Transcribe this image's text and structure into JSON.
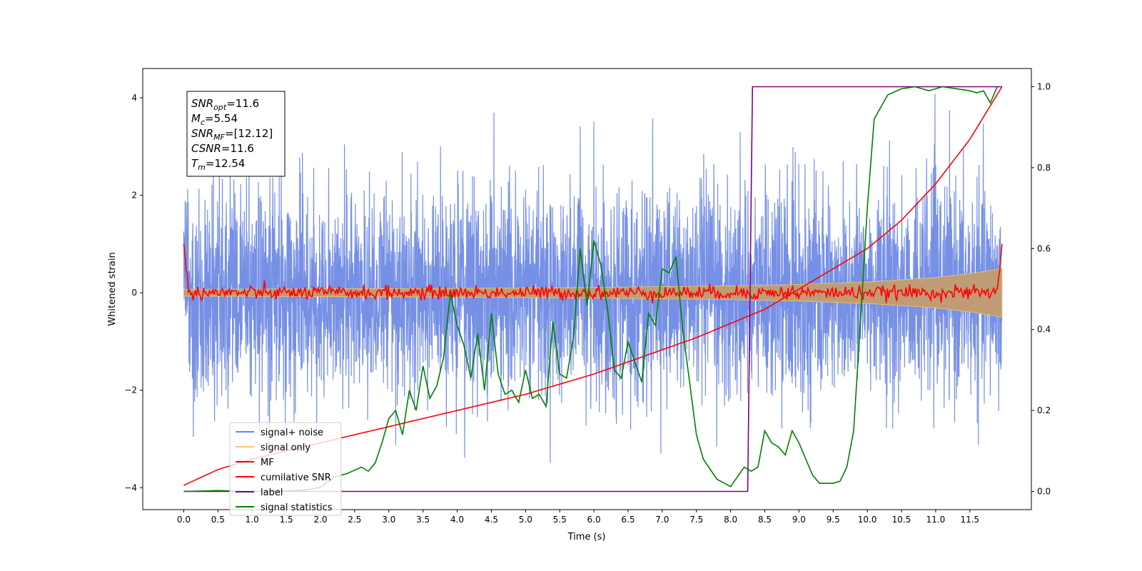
{
  "chart_data": {
    "type": "line",
    "xlabel": "Time (s)",
    "ylabel": "Whitened strain",
    "xlim": [
      -0.6,
      12.4
    ],
    "ylim": [
      -4.45,
      4.6
    ],
    "y2lim": [
      -0.045,
      1.045
    ],
    "xticks": [
      0.0,
      0.5,
      1.0,
      1.5,
      2.0,
      2.5,
      3.0,
      3.5,
      4.0,
      4.5,
      5.0,
      5.5,
      6.0,
      6.5,
      7.0,
      7.5,
      8.0,
      8.5,
      9.0,
      9.5,
      10.0,
      10.5,
      11.0,
      11.5
    ],
    "xtick_labels": [
      "0.0",
      "0.5",
      "1.0",
      "1.5",
      "2.0",
      "2.5",
      "3.0",
      "3.5",
      "4.0",
      "4.5",
      "5.0",
      "5.5",
      "6.0",
      "6.5",
      "7.0",
      "7.5",
      "8.0",
      "8.5",
      "9.0",
      "9.5",
      "10.0",
      "10.5",
      "11.0",
      "11.5"
    ],
    "yticks": [
      -4,
      -2,
      0,
      2,
      4
    ],
    "ytick_labels": [
      "−4",
      "−2",
      "0",
      "2",
      "4"
    ],
    "y2ticks": [
      0.0,
      0.2,
      0.4,
      0.6,
      0.8,
      1.0
    ],
    "y2tick_labels": [
      "0.0",
      "0.2",
      "0.4",
      "0.6",
      "0.8",
      "1.0"
    ],
    "grid": false,
    "legend_placement": "lower-left",
    "annotation_lines": [
      {
        "main": "SNR",
        "sub": "opt",
        "rest": "=11.6"
      },
      {
        "main": "M",
        "sub": "c",
        "rest": "=5.54"
      },
      {
        "main": "SNR",
        "sub": "MF",
        "rest": "=[12.12]"
      },
      {
        "main": "CSNR",
        "sub": "",
        "rest": "=11.6"
      },
      {
        "main": "T",
        "sub": "m",
        "rest": "=12.54"
      }
    ],
    "series": [
      {
        "name": "signal+ noise",
        "color": "#6a87e3",
        "axis": "left",
        "style": "noise",
        "x_range": [
          0.0,
          11.97
        ],
        "std": 1.0,
        "approx_extremes": [
          -4.05,
          4.2
        ]
      },
      {
        "name": "signal only",
        "color": "#f6c76d",
        "axis": "left",
        "style": "chirp-envelope",
        "x_range": [
          0.0,
          11.97
        ],
        "envelope": {
          "x": [
            0,
            2,
            4,
            6,
            8,
            9,
            10,
            11,
            11.6,
            11.97
          ],
          "y": [
            0.07,
            0.08,
            0.09,
            0.11,
            0.14,
            0.17,
            0.22,
            0.31,
            0.41,
            0.5
          ]
        }
      },
      {
        "name": "MF",
        "color": "#ff0000",
        "axis": "left",
        "style": "jitter",
        "x_range": [
          0.0,
          11.97
        ],
        "amplitude": 0.07,
        "endpoints": [
          1.0,
          1.0
        ]
      },
      {
        "name": "cumilative SNR",
        "color": "#ff0000",
        "axis": "right",
        "x": [
          0.0,
          0.5,
          1.0,
          2.0,
          3.0,
          4.0,
          5.0,
          6.0,
          7.0,
          7.5,
          8.0,
          8.5,
          9.0,
          9.5,
          10.0,
          10.5,
          11.0,
          11.5,
          11.97
        ],
        "values": [
          0.015,
          0.054,
          0.08,
          0.12,
          0.16,
          0.2,
          0.24,
          0.29,
          0.35,
          0.38,
          0.415,
          0.45,
          0.5,
          0.55,
          0.6,
          0.67,
          0.76,
          0.87,
          1.0
        ]
      },
      {
        "name": "label",
        "color": "#800080",
        "axis": "right",
        "x": [
          0.0,
          8.25,
          8.32,
          11.97
        ],
        "values": [
          0.0,
          0.0,
          1.0,
          1.0
        ]
      },
      {
        "name": "signal statistics",
        "color": "#008000",
        "axis": "right",
        "x": [
          0.0,
          0.5,
          1.0,
          1.5,
          1.8,
          2.0,
          2.2,
          2.4,
          2.6,
          2.7,
          2.8,
          2.9,
          3.0,
          3.1,
          3.2,
          3.3,
          3.4,
          3.5,
          3.6,
          3.7,
          3.8,
          3.9,
          4.0,
          4.1,
          4.2,
          4.3,
          4.4,
          4.5,
          4.6,
          4.7,
          4.8,
          4.9,
          5.0,
          5.1,
          5.2,
          5.3,
          5.4,
          5.5,
          5.6,
          5.7,
          5.8,
          5.9,
          6.0,
          6.1,
          6.2,
          6.3,
          6.4,
          6.5,
          6.6,
          6.7,
          6.8,
          6.9,
          7.0,
          7.1,
          7.2,
          7.3,
          7.4,
          7.5,
          7.6,
          7.8,
          8.0,
          8.2,
          8.3,
          8.4,
          8.5,
          8.6,
          8.7,
          8.8,
          8.9,
          9.0,
          9.1,
          9.2,
          9.3,
          9.5,
          9.6,
          9.7,
          9.8,
          9.9,
          10.0,
          10.1,
          10.3,
          10.5,
          10.7,
          10.9,
          11.1,
          11.3,
          11.5,
          11.6,
          11.7,
          11.8,
          11.9
        ],
        "values": [
          0.0,
          0.002,
          0.0,
          0.001,
          0.004,
          0.01,
          0.035,
          0.045,
          0.06,
          0.05,
          0.07,
          0.12,
          0.18,
          0.2,
          0.14,
          0.25,
          0.2,
          0.31,
          0.23,
          0.26,
          0.33,
          0.49,
          0.41,
          0.36,
          0.28,
          0.39,
          0.25,
          0.44,
          0.29,
          0.24,
          0.25,
          0.22,
          0.3,
          0.23,
          0.24,
          0.21,
          0.42,
          0.29,
          0.28,
          0.38,
          0.6,
          0.46,
          0.62,
          0.56,
          0.45,
          0.3,
          0.28,
          0.37,
          0.32,
          0.27,
          0.44,
          0.41,
          0.55,
          0.54,
          0.58,
          0.4,
          0.27,
          0.14,
          0.08,
          0.03,
          0.012,
          0.06,
          0.05,
          0.06,
          0.15,
          0.12,
          0.11,
          0.09,
          0.15,
          0.12,
          0.08,
          0.04,
          0.02,
          0.02,
          0.025,
          0.06,
          0.15,
          0.42,
          0.7,
          0.92,
          0.98,
          0.995,
          1.0,
          0.99,
          1.0,
          0.995,
          0.99,
          0.985,
          0.99,
          0.96,
          1.0
        ]
      }
    ]
  }
}
